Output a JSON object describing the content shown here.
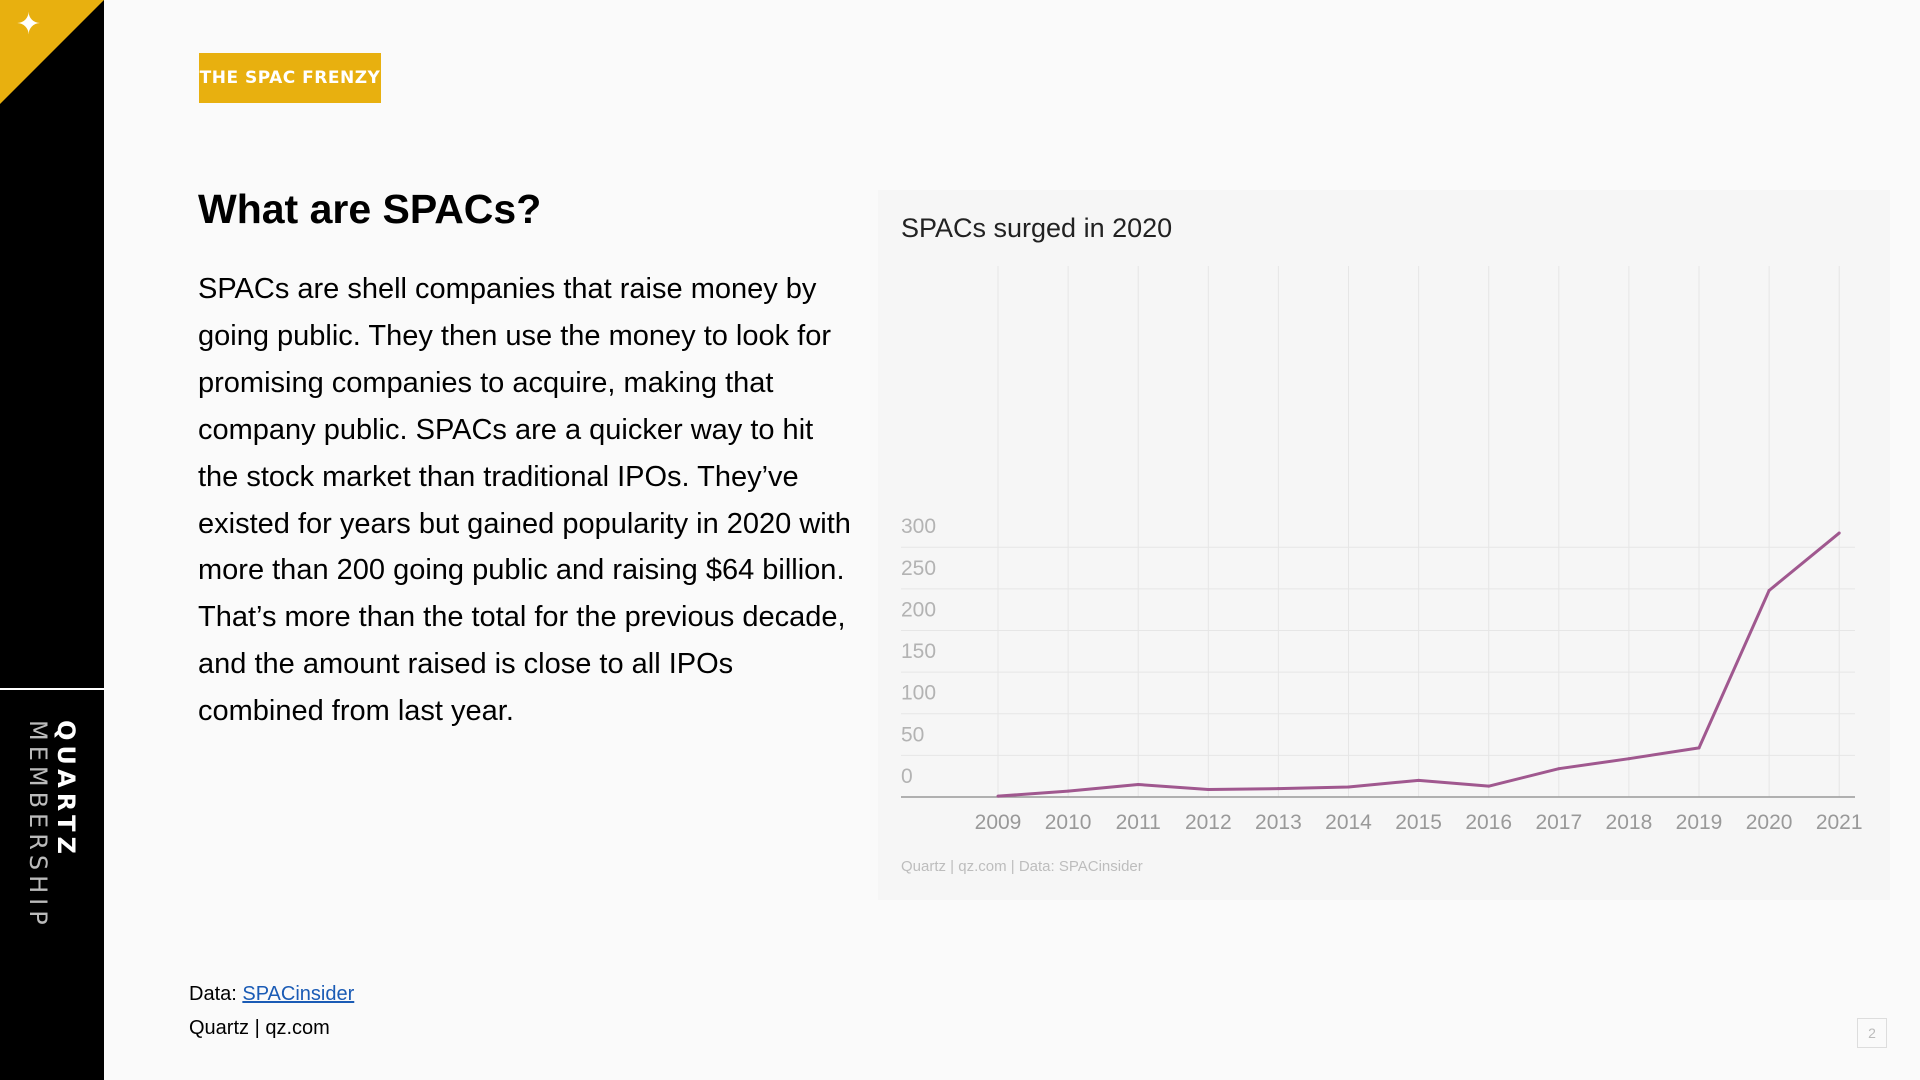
{
  "sidebar": {
    "brand_bold": "QUARTZ",
    "brand_light": "MEMBERSHIP",
    "corner_icon": "sparkle-icon"
  },
  "tag": "THE SPAC FRENZY",
  "heading": "What are SPACs?",
  "body": "SPACs are shell companies that raise money by going public. They then use the money to look for promising companies to acquire, making that company public. SPACs are a quicker way to hit the stock market than traditional IPOs. They’ve existed for years but gained popularity in 2020 with more than 200 going public and raising $64 billion. That’s more than the total for the previous decade, and the amount raised is close to all IPOs combined from last year.",
  "footer": {
    "data_prefix": "Data: ",
    "data_link": "SPACinsider",
    "credit": "Quartz | qz.com"
  },
  "page_number": "2",
  "colors": {
    "accent": "#e8b00f",
    "line": "#a0588f",
    "link": "#1a5bb5"
  },
  "chart_data": {
    "type": "line",
    "title": "SPACs surged in 2020",
    "source": "Quartz | qz.com | Data: SPACinsider",
    "x": [
      2009,
      2010,
      2011,
      2012,
      2013,
      2014,
      2015,
      2016,
      2017,
      2018,
      2019,
      2020,
      2021
    ],
    "series": [
      {
        "values": [
          1,
          7,
          15,
          9,
          10,
          12,
          20,
          13,
          34,
          46,
          59,
          248,
          317
        ]
      }
    ],
    "yticks": [
      0,
      50,
      100,
      150,
      200,
      250,
      300
    ],
    "ylim": [
      0,
      320
    ],
    "grid": true,
    "xlabel": "",
    "ylabel": ""
  }
}
